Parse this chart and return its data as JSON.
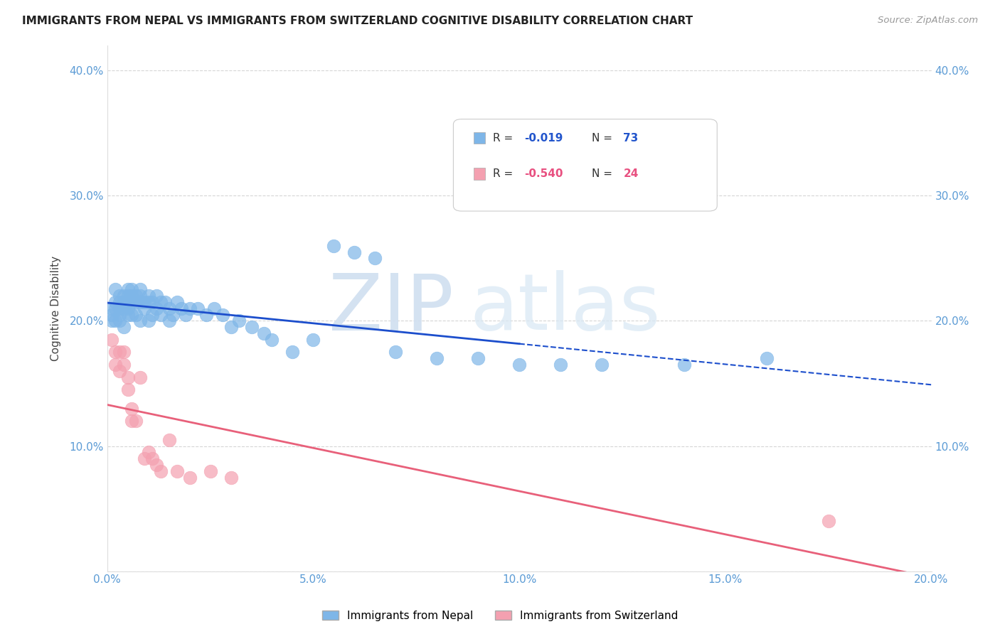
{
  "title": "IMMIGRANTS FROM NEPAL VS IMMIGRANTS FROM SWITZERLAND COGNITIVE DISABILITY CORRELATION CHART",
  "source": "Source: ZipAtlas.com",
  "ylabel": "Cognitive Disability",
  "xlim": [
    0.0,
    0.2
  ],
  "ylim": [
    0.0,
    0.42
  ],
  "xticks": [
    0.0,
    0.05,
    0.1,
    0.15,
    0.2
  ],
  "yticks": [
    0.0,
    0.1,
    0.2,
    0.3,
    0.4
  ],
  "xticklabels": [
    "0.0%",
    "5.0%",
    "10.0%",
    "15.0%",
    "20.0%"
  ],
  "yticklabels": [
    "",
    "10.0%",
    "20.0%",
    "30.0%",
    "40.0%"
  ],
  "legend_labels": [
    "Immigrants from Nepal",
    "Immigrants from Switzerland"
  ],
  "nepal_color": "#7EB6E8",
  "switzerland_color": "#F4A0B0",
  "nepal_line_color": "#1C4ECC",
  "switzerland_line_color": "#E8607A",
  "nepal_R": "-0.019",
  "nepal_N": "73",
  "switzerland_R": "-0.540",
  "switzerland_N": "24",
  "nepal_x": [
    0.001,
    0.001,
    0.001,
    0.002,
    0.002,
    0.002,
    0.002,
    0.003,
    0.003,
    0.003,
    0.003,
    0.003,
    0.004,
    0.004,
    0.004,
    0.004,
    0.005,
    0.005,
    0.005,
    0.005,
    0.005,
    0.006,
    0.006,
    0.006,
    0.006,
    0.007,
    0.007,
    0.007,
    0.008,
    0.008,
    0.008,
    0.008,
    0.009,
    0.009,
    0.01,
    0.01,
    0.01,
    0.011,
    0.011,
    0.012,
    0.012,
    0.013,
    0.013,
    0.014,
    0.015,
    0.015,
    0.016,
    0.017,
    0.018,
    0.019,
    0.02,
    0.022,
    0.024,
    0.026,
    0.028,
    0.03,
    0.032,
    0.035,
    0.038,
    0.04,
    0.045,
    0.05,
    0.055,
    0.06,
    0.065,
    0.07,
    0.08,
    0.09,
    0.1,
    0.11,
    0.12,
    0.14,
    0.16
  ],
  "nepal_y": [
    0.21,
    0.205,
    0.2,
    0.225,
    0.215,
    0.21,
    0.2,
    0.22,
    0.215,
    0.21,
    0.205,
    0.2,
    0.22,
    0.215,
    0.21,
    0.195,
    0.225,
    0.22,
    0.215,
    0.21,
    0.205,
    0.225,
    0.22,
    0.215,
    0.205,
    0.22,
    0.215,
    0.205,
    0.225,
    0.22,
    0.215,
    0.2,
    0.215,
    0.21,
    0.22,
    0.215,
    0.2,
    0.215,
    0.205,
    0.22,
    0.21,
    0.215,
    0.205,
    0.215,
    0.21,
    0.2,
    0.205,
    0.215,
    0.21,
    0.205,
    0.21,
    0.21,
    0.205,
    0.21,
    0.205,
    0.195,
    0.2,
    0.195,
    0.19,
    0.185,
    0.175,
    0.185,
    0.26,
    0.255,
    0.25,
    0.175,
    0.17,
    0.17,
    0.165,
    0.165,
    0.165,
    0.165,
    0.17
  ],
  "switzerland_x": [
    0.001,
    0.002,
    0.002,
    0.003,
    0.003,
    0.004,
    0.004,
    0.005,
    0.005,
    0.006,
    0.006,
    0.007,
    0.008,
    0.009,
    0.01,
    0.011,
    0.012,
    0.013,
    0.015,
    0.017,
    0.02,
    0.025,
    0.03,
    0.175
  ],
  "switzerland_y": [
    0.185,
    0.175,
    0.165,
    0.175,
    0.16,
    0.175,
    0.165,
    0.155,
    0.145,
    0.13,
    0.12,
    0.12,
    0.155,
    0.09,
    0.095,
    0.09,
    0.085,
    0.08,
    0.105,
    0.08,
    0.075,
    0.08,
    0.075,
    0.04
  ]
}
